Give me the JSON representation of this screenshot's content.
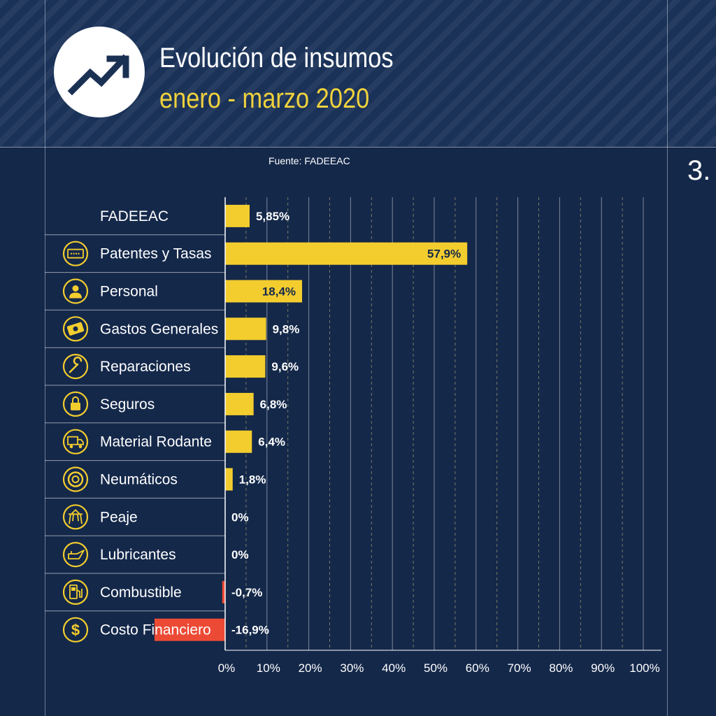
{
  "header": {
    "title": "Evolución de insumos",
    "subtitle": "enero - marzo 2020",
    "icon": "trending-up-icon"
  },
  "source": "Fuente: FADEEAC",
  "page_number": "3.",
  "colors": {
    "background": "#14284a",
    "header_bg": "#1a3258",
    "positive_bar": "#f3cd2e",
    "negative_bar": "#ec4a35",
    "accent": "#f0d23c",
    "text": "#ffffff"
  },
  "chart_data": {
    "type": "bar",
    "orientation": "horizontal",
    "categories": [
      "FADEEAC",
      "Patentes y Tasas",
      "Personal",
      "Gastos Generales",
      "Reparaciones",
      "Seguros",
      "Material Rodante",
      "Neumáticos",
      "Peaje",
      "Lubricantes",
      "Combustible",
      "Costo Financiero"
    ],
    "values": [
      5.85,
      57.9,
      18.4,
      9.8,
      9.6,
      6.8,
      6.4,
      1.8,
      0,
      0,
      -0.7,
      -16.9
    ],
    "value_labels": [
      "5,85%",
      "57,9%",
      "18,4%",
      "9,8%",
      "9,6%",
      "6,8%",
      "6,4%",
      "1,8%",
      "0%",
      "0%",
      "-0,7%",
      "-16,9%"
    ],
    "category_icons": [
      "",
      "license-plate-icon",
      "person-icon",
      "money-icon",
      "wrench-icon",
      "lock-icon",
      "truck-icon",
      "tire-icon",
      "toll-icon",
      "oil-can-icon",
      "fuel-pump-icon",
      "dollar-icon"
    ],
    "xlim": [
      0,
      100
    ],
    "xticks": [
      0,
      10,
      20,
      30,
      40,
      50,
      60,
      70,
      80,
      90,
      100
    ],
    "xtick_labels": [
      "0%",
      "10%",
      "20%",
      "30%",
      "40%",
      "50%",
      "60%",
      "70%",
      "80%",
      "90%",
      "100%"
    ],
    "grid": true
  }
}
